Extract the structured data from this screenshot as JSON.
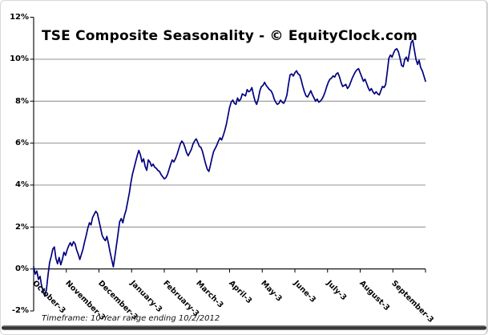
{
  "chart_data": {
    "type": "line",
    "title": "TSE Composite Seasonality - © EquityClock.com",
    "footnote": "Timeframe: 10-Year range ending 10/2/2012",
    "xlabel": "",
    "ylabel": "",
    "ylim": [
      -2,
      12
    ],
    "y_major_step": 2,
    "y_tick_labels": [
      "12%",
      "10%",
      "8%",
      "6%",
      "4%",
      "2%",
      "0%",
      "-2%"
    ],
    "x_tick_labels": [
      "October-3",
      "November-3",
      "December-3",
      "January-3",
      "February-3",
      "March-3",
      "April-3",
      "May-3",
      "June-3",
      "July-3",
      "August-3",
      "September-3"
    ],
    "grid": "horizontal-major",
    "legend": "none",
    "colors": {
      "line": "#000080",
      "grid": "#858585",
      "axis": "#000000"
    },
    "unit": "percent",
    "values": [
      0.1,
      -0.25,
      -0.1,
      -0.5,
      -0.35,
      -0.8,
      -1.05,
      -1.3,
      -1.0,
      -0.3,
      0.3,
      0.6,
      0.95,
      1.05,
      0.5,
      0.25,
      0.55,
      0.2,
      0.45,
      0.8,
      0.65,
      0.9,
      1.1,
      1.25,
      1.1,
      1.3,
      1.2,
      0.9,
      0.7,
      0.45,
      0.7,
      0.95,
      1.3,
      1.6,
      1.95,
      2.2,
      2.1,
      2.45,
      2.6,
      2.75,
      2.65,
      2.3,
      1.95,
      1.6,
      1.45,
      1.35,
      1.55,
      1.2,
      0.8,
      0.45,
      0.1,
      0.6,
      1.15,
      1.7,
      2.25,
      2.4,
      2.2,
      2.55,
      2.8,
      3.2,
      3.6,
      4.1,
      4.5,
      4.8,
      5.1,
      5.4,
      5.65,
      5.45,
      5.1,
      5.25,
      4.9,
      4.7,
      5.2,
      5.1,
      4.9,
      5.0,
      4.85,
      4.8,
      4.7,
      4.65,
      4.5,
      4.4,
      4.3,
      4.35,
      4.5,
      4.75,
      5.0,
      5.2,
      5.1,
      5.25,
      5.45,
      5.7,
      5.95,
      6.1,
      6.0,
      5.8,
      5.55,
      5.4,
      5.55,
      5.7,
      5.95,
      6.1,
      6.2,
      6.05,
      5.85,
      5.8,
      5.6,
      5.3,
      5.0,
      4.75,
      4.65,
      4.95,
      5.3,
      5.6,
      5.75,
      5.9,
      6.1,
      6.25,
      6.15,
      6.35,
      6.6,
      6.9,
      7.3,
      7.7,
      7.95,
      8.05,
      7.9,
      7.85,
      8.15,
      8.0,
      8.1,
      8.35,
      8.3,
      8.25,
      8.55,
      8.45,
      8.5,
      8.65,
      8.3,
      8.0,
      7.85,
      8.1,
      8.5,
      8.7,
      8.75,
      8.9,
      8.75,
      8.65,
      8.55,
      8.5,
      8.35,
      8.1,
      7.95,
      7.85,
      7.9,
      8.05,
      7.95,
      7.9,
      8.05,
      8.3,
      8.8,
      9.25,
      9.3,
      9.2,
      9.35,
      9.45,
      9.3,
      9.25,
      9.0,
      8.7,
      8.45,
      8.25,
      8.2,
      8.35,
      8.5,
      8.3,
      8.15,
      8.0,
      8.1,
      7.95,
      8.0,
      8.1,
      8.25,
      8.45,
      8.7,
      8.9,
      9.05,
      9.1,
      9.2,
      9.15,
      9.3,
      9.35,
      9.15,
      8.9,
      8.7,
      8.75,
      8.8,
      8.6,
      8.7,
      8.9,
      9.1,
      9.25,
      9.4,
      9.5,
      9.55,
      9.35,
      9.15,
      8.95,
      9.05,
      8.85,
      8.65,
      8.5,
      8.6,
      8.45,
      8.35,
      8.45,
      8.35,
      8.3,
      8.5,
      8.7,
      8.65,
      8.8,
      9.4,
      10.05,
      10.2,
      10.1,
      10.3,
      10.45,
      10.5,
      10.35,
      10.05,
      9.7,
      9.65,
      10.0,
      10.1,
      9.9,
      10.35,
      10.8,
      10.9,
      10.45,
      10.0,
      9.75,
      9.95,
      9.6,
      9.45,
      9.2,
      8.95
    ]
  }
}
